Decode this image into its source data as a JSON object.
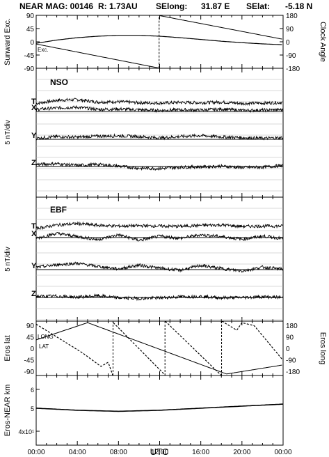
{
  "header": {
    "mission": "NEAR MAG: 00146",
    "range": "R: 1.73AU",
    "selong_label": "SElong:",
    "selong_value": "31.87 E",
    "selat_label": "SElat:",
    "selat_value": "-5.18 N"
  },
  "colors": {
    "trace": "#000000",
    "grid": "#b5b5b5",
    "background": "#ffffff"
  },
  "chart_data": [
    {
      "type": "line",
      "panel": "orientation",
      "ylabel_left": "Sunward Exc.",
      "ylabel_right": "Clock Angle",
      "left_ticks": [
        "90",
        "45",
        "0",
        "-45",
        "-90"
      ],
      "right_ticks": [
        "180",
        "90",
        "0",
        "-90",
        "-180"
      ],
      "ylim_left": [
        -90,
        90
      ],
      "ylim_right": [
        -180,
        180
      ],
      "inline_label": "Exc.",
      "series": [
        {
          "axis": "left",
          "style": "solid",
          "x": [
            0,
            2,
            4,
            6,
            8,
            10,
            12,
            14,
            16,
            18,
            20,
            22,
            24
          ],
          "y": [
            -5,
            6,
            14,
            19,
            22,
            22,
            19,
            14,
            8,
            2,
            -3,
            -7,
            -10
          ]
        },
        {
          "axis": "right",
          "style": "solid",
          "x": [
            0,
            11.9,
            12.0,
            24
          ],
          "y": [
            -15,
            -178,
            178,
            17
          ]
        }
      ],
      "xlim": [
        0,
        24
      ]
    },
    {
      "type": "line",
      "panel": "NSO",
      "title": "NSO",
      "ylabel": "5 nT/div",
      "components": [
        {
          "name": "T",
          "baseline_offset": 0.55,
          "x": [
            0,
            2,
            4,
            6,
            8,
            10,
            12,
            14,
            16,
            18,
            20,
            22,
            24
          ],
          "y": [
            0.5,
            1.4,
            1.6,
            0.9,
            1.0,
            0.7,
            0.6,
            0.8,
            0.7,
            0.9,
            0.5,
            0.6,
            0.8
          ]
        },
        {
          "name": "X",
          "baseline_offset": 0,
          "x": [
            0,
            2,
            4,
            6,
            8,
            10,
            12,
            14,
            16,
            18,
            20,
            22,
            24
          ],
          "y": [
            0.6,
            1.0,
            1.2,
            0.6,
            0.7,
            0.5,
            0.3,
            0.5,
            0.4,
            0.7,
            0.3,
            0.4,
            0.5
          ]
        },
        {
          "name": "Y",
          "baseline_offset": 0,
          "x": [
            0,
            2,
            4,
            6,
            8,
            10,
            12,
            14,
            16,
            18,
            20,
            22,
            24
          ],
          "y": [
            0.3,
            0.8,
            0.6,
            0.9,
            1.0,
            0.8,
            0.4,
            0.8,
            1.1,
            0.7,
            0.5,
            0.3,
            0.5
          ]
        },
        {
          "name": "Z",
          "baseline_offset": 0,
          "x": [
            0,
            2,
            4,
            6,
            8,
            10,
            12,
            14,
            16,
            18,
            20,
            22,
            24
          ],
          "y": [
            0.6,
            0.8,
            0.3,
            0.6,
            0.1,
            -0.5,
            -0.6,
            -0.2,
            -0.1,
            0.1,
            -0.3,
            -0.2,
            0.3
          ]
        }
      ],
      "xlim": [
        0,
        24
      ]
    },
    {
      "type": "line",
      "panel": "EBF",
      "title": "EBF",
      "ylabel": "5 nT/div",
      "components": [
        {
          "name": "T",
          "baseline_offset": 0.55,
          "x": [
            0,
            2,
            4,
            6,
            8,
            10,
            12,
            14,
            16,
            18,
            20,
            22,
            24
          ],
          "y": [
            0.4,
            1.4,
            1.8,
            1.3,
            1.1,
            1.2,
            1.1,
            1.0,
            1.3,
            1.4,
            1.0,
            1.1,
            1.1
          ]
        },
        {
          "name": "X",
          "baseline_offset": 0,
          "x": [
            0,
            2,
            4,
            6,
            8,
            10,
            12,
            14,
            16,
            18,
            20,
            22,
            24
          ],
          "y": [
            -0.2,
            1.2,
            0.3,
            -0.6,
            0.8,
            -0.8,
            0.4,
            -0.2,
            0.8,
            0.3,
            -0.5,
            0.4,
            -0.3
          ]
        },
        {
          "name": "Y",
          "baseline_offset": 0,
          "x": [
            0,
            2,
            4,
            6,
            8,
            10,
            12,
            14,
            16,
            18,
            20,
            22,
            24
          ],
          "y": [
            0.6,
            1.4,
            1.8,
            0.9,
            0.2,
            1.3,
            0.4,
            -0.2,
            1.2,
            0.3,
            -0.4,
            0.7,
            0.1
          ]
        },
        {
          "name": "Z",
          "baseline_offset": 0,
          "x": [
            0,
            2,
            4,
            6,
            8,
            10,
            12,
            14,
            16,
            18,
            20,
            22,
            24
          ],
          "y": [
            0.3,
            0.4,
            0.1,
            0.5,
            -0.1,
            -0.3,
            -0.1,
            0.2,
            0.3,
            -0.1,
            0.0,
            0.2,
            0.0
          ]
        }
      ],
      "xlim": [
        0,
        24
      ]
    },
    {
      "type": "line",
      "panel": "eros-coordinates",
      "ylabel_left": "Eros lat",
      "ylabel_right": "Eros long",
      "left_ticks": [
        "90",
        "45",
        "0",
        "-45",
        "-90"
      ],
      "right_ticks": [
        "180",
        "90",
        "0",
        "-90",
        "-180"
      ],
      "ylim_left": [
        -90,
        90
      ],
      "ylim_right": [
        -180,
        180
      ],
      "series_labels": [
        "LONG",
        "LAT"
      ],
      "series": [
        {
          "name": "LAT",
          "axis": "left",
          "style": "solid",
          "x": [
            0,
            5,
            18.5,
            24
          ],
          "y": [
            28,
            85,
            -85,
            -55
          ]
        },
        {
          "name": "LONG",
          "axis": "right",
          "style": "dashed",
          "x": [
            0,
            4.5,
            6.3,
            7.0,
            7.45,
            7.5,
            12.5,
            12.55,
            18.0,
            18.05,
            19.5,
            20.0,
            21.2,
            24
          ],
          "y": [
            160,
            -30,
            -120,
            -92,
            -180,
            170,
            -175,
            180,
            -180,
            180,
            120,
            170,
            150,
            -80
          ]
        }
      ],
      "xlim": [
        0,
        24
      ]
    },
    {
      "type": "line",
      "panel": "range",
      "ylabel": "Eros-NEAR km",
      "yscale": "log",
      "ytick_labels": [
        "6",
        "5",
        "4x10¹"
      ],
      "series": [
        {
          "style": "solid",
          "x": [
            0,
            4,
            8,
            12,
            16,
            20,
            24
          ],
          "y": [
            50,
            49,
            48.5,
            49,
            50,
            51,
            52
          ]
        }
      ],
      "xlim": [
        0,
        24
      ],
      "xlabel": "UTC",
      "xtick_labels": [
        "00:00",
        "04:00",
        "08:00",
        "12:00",
        "16:00",
        "20:00",
        "00:00"
      ]
    }
  ],
  "panel_labels": {
    "nso_title": "NSO",
    "ebf_title": "EBF"
  },
  "axis_text": {
    "sunward": "Sunward Exc.",
    "clock": "Clock Angle",
    "nso_ylabel": "5 nT/div",
    "ebf_ylabel": "5 nT/div",
    "eros_lat": "Eros lat",
    "eros_long": "Eros long",
    "range_ylabel": "Eros-NEAR km",
    "xlabel": "UTC",
    "exc_inline": "Exc.",
    "long_inline": "LONG",
    "lat_inline": "LAT"
  }
}
